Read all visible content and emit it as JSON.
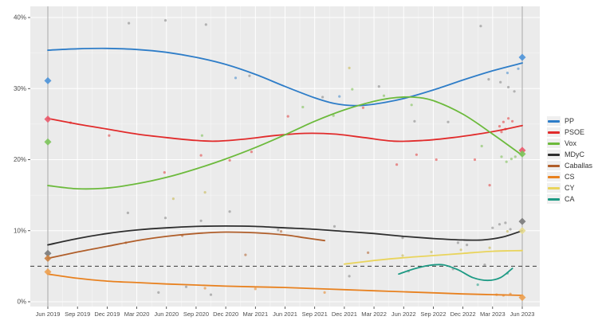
{
  "chart_data": {
    "type": "line",
    "title": "",
    "description_visible_elements": "smoothed polling trend lines with poll scatter dots, two election-result diamond columns, 5% dashed threshold",
    "x_axis": {
      "tick_labels": [
        "Jun 2019",
        "Sep 2019",
        "Dec 2019",
        "Mar 2020",
        "Jun 2020",
        "Sep 2020",
        "Dec 2020",
        "Mar 2021",
        "Jun 2021",
        "Sep 2021",
        "Dec 2021",
        "Mar 2022",
        "Jun 2022",
        "Sep 2022",
        "Dec 2022",
        "Mar 2023",
        "Jun 2023"
      ],
      "tick_months": [
        0,
        3,
        6,
        9,
        12,
        15,
        18,
        21,
        24,
        27,
        30,
        33,
        36,
        39,
        42,
        45,
        48
      ]
    },
    "y_axis": {
      "tick_labels": [
        "0%",
        "10%",
        "20%",
        "30%",
        "40%"
      ],
      "tick_values": [
        0,
        10,
        20,
        30,
        40
      ],
      "minor_values": [
        5,
        15,
        25,
        35
      ],
      "ylim": [
        -0.7,
        41.6
      ]
    },
    "threshold_pct": 5,
    "grid": "on",
    "legend_position": "right",
    "legend": [
      {
        "label": "PP",
        "color": "#2e7dc8"
      },
      {
        "label": "PSOE",
        "color": "#e12b2b"
      },
      {
        "label": "Vox",
        "color": "#6cba3c"
      },
      {
        "label": "MDyC",
        "color": "#2e2e2e"
      },
      {
        "label": "Caballas",
        "color": "#b05e2a"
      },
      {
        "label": "CS",
        "color": "#e8811f"
      },
      {
        "label": "CY",
        "color": "#e9d45c"
      },
      {
        "label": "CA",
        "color": "#1d9a84"
      }
    ],
    "series": [
      {
        "name": "PP",
        "color": "#2e7dc8",
        "points": [
          [
            0,
            35.4
          ],
          [
            3,
            35.6
          ],
          [
            6,
            35.65
          ],
          [
            9,
            35.5
          ],
          [
            12,
            35.1
          ],
          [
            15,
            34.4
          ],
          [
            18,
            33.4
          ],
          [
            21,
            32.0
          ],
          [
            24,
            30.3
          ],
          [
            27,
            28.7
          ],
          [
            29,
            27.9
          ],
          [
            31,
            27.6
          ],
          [
            33,
            27.8
          ],
          [
            36,
            28.6
          ],
          [
            39,
            29.8
          ],
          [
            42,
            31.2
          ],
          [
            45,
            32.5
          ],
          [
            48,
            33.6
          ]
        ]
      },
      {
        "name": "PSOE",
        "color": "#e12b2b",
        "points": [
          [
            0,
            25.8
          ],
          [
            3,
            25.0
          ],
          [
            6,
            24.3
          ],
          [
            9,
            23.6
          ],
          [
            12,
            23.1
          ],
          [
            15,
            22.7
          ],
          [
            17,
            22.6
          ],
          [
            20,
            22.9
          ],
          [
            23,
            23.4
          ],
          [
            26,
            23.7
          ],
          [
            29,
            23.6
          ],
          [
            32,
            23.1
          ],
          [
            35,
            22.6
          ],
          [
            38,
            22.7
          ],
          [
            41,
            23.1
          ],
          [
            44,
            23.7
          ],
          [
            46,
            24.2
          ],
          [
            48,
            24.8
          ]
        ]
      },
      {
        "name": "Vox",
        "color": "#6cba3c",
        "points": [
          [
            0,
            16.35
          ],
          [
            3,
            15.9
          ],
          [
            6,
            16.0
          ],
          [
            9,
            16.6
          ],
          [
            12,
            17.5
          ],
          [
            15,
            18.7
          ],
          [
            18,
            20.1
          ],
          [
            21,
            21.7
          ],
          [
            24,
            23.5
          ],
          [
            27,
            25.4
          ],
          [
            30,
            27.0
          ],
          [
            33,
            28.2
          ],
          [
            35,
            28.7
          ],
          [
            37,
            28.8
          ],
          [
            39,
            28.3
          ],
          [
            42,
            26.4
          ],
          [
            45,
            23.6
          ],
          [
            48,
            20.6
          ]
        ]
      },
      {
        "name": "MDyC",
        "color": "#2e2e2e",
        "points": [
          [
            0,
            8.0
          ],
          [
            3,
            8.9
          ],
          [
            6,
            9.6
          ],
          [
            9,
            10.1
          ],
          [
            12,
            10.4
          ],
          [
            15,
            10.6
          ],
          [
            18,
            10.65
          ],
          [
            21,
            10.6
          ],
          [
            24,
            10.4
          ],
          [
            27,
            10.2
          ],
          [
            30,
            9.9
          ],
          [
            33,
            9.6
          ],
          [
            36,
            9.2
          ],
          [
            39,
            8.9
          ],
          [
            42,
            8.7
          ],
          [
            44,
            8.7
          ],
          [
            46,
            9.1
          ],
          [
            48,
            10.0
          ]
        ]
      },
      {
        "name": "Caballas",
        "color": "#b05e2a",
        "points": [
          [
            0,
            6.1
          ],
          [
            3,
            7.0
          ],
          [
            6,
            7.8
          ],
          [
            9,
            8.6
          ],
          [
            12,
            9.2
          ],
          [
            15,
            9.6
          ],
          [
            18,
            9.8
          ],
          [
            21,
            9.7
          ],
          [
            24,
            9.4
          ],
          [
            26,
            9.0
          ],
          [
            28,
            8.6
          ]
        ]
      },
      {
        "name": "CS",
        "color": "#e8811f",
        "points": [
          [
            0,
            3.9
          ],
          [
            3,
            3.3
          ],
          [
            6,
            2.9
          ],
          [
            9,
            2.7
          ],
          [
            12,
            2.5
          ],
          [
            15,
            2.35
          ],
          [
            18,
            2.2
          ],
          [
            21,
            2.1
          ],
          [
            24,
            2.0
          ],
          [
            27,
            1.85
          ],
          [
            30,
            1.7
          ],
          [
            33,
            1.55
          ],
          [
            36,
            1.4
          ],
          [
            39,
            1.25
          ],
          [
            42,
            1.1
          ],
          [
            45,
            1.0
          ],
          [
            48,
            0.9
          ]
        ]
      },
      {
        "name": "CY",
        "color": "#e9d45c",
        "points": [
          [
            30,
            5.3
          ],
          [
            33,
            5.8
          ],
          [
            36,
            6.2
          ],
          [
            39,
            6.5
          ],
          [
            42,
            6.8
          ],
          [
            45,
            7.1
          ],
          [
            48,
            7.2
          ]
        ]
      },
      {
        "name": "CA",
        "color": "#1d9a84",
        "points": [
          [
            35.5,
            3.9
          ],
          [
            37,
            4.6
          ],
          [
            38.5,
            5.1
          ],
          [
            40,
            5.2
          ],
          [
            41.5,
            4.5
          ],
          [
            43,
            3.4
          ],
          [
            44.5,
            3.0
          ],
          [
            45.8,
            3.4
          ],
          [
            47,
            4.7
          ]
        ]
      }
    ],
    "scatter": [
      {
        "name": "PP-polls",
        "color": "#2e7dc8",
        "opacity": 0.5,
        "points": [
          [
            19.0,
            31.5
          ],
          [
            29.5,
            28.9
          ],
          [
            46.5,
            32.2
          ],
          [
            47.6,
            32.8
          ]
        ]
      },
      {
        "name": "PSOE-polls",
        "color": "#e12b2b",
        "opacity": 0.5,
        "points": [
          [
            2.3,
            25.2
          ],
          [
            6.2,
            23.4
          ],
          [
            11.8,
            18.2
          ],
          [
            15.5,
            20.6
          ],
          [
            18.4,
            19.9
          ],
          [
            20.6,
            21.1
          ],
          [
            24.3,
            26.1
          ],
          [
            31.9,
            27.3
          ],
          [
            35.3,
            19.3
          ],
          [
            37.3,
            20.7
          ],
          [
            39.3,
            20.0
          ],
          [
            43.2,
            20.0
          ],
          [
            44.7,
            16.4
          ],
          [
            45.7,
            24.7
          ],
          [
            45.9,
            23.9
          ],
          [
            46.1,
            25.3
          ],
          [
            46.3,
            24.3
          ],
          [
            46.6,
            25.8
          ],
          [
            47.0,
            25.4
          ]
        ]
      },
      {
        "name": "Vox-polls",
        "color": "#6cba3c",
        "opacity": 0.5,
        "points": [
          [
            15.6,
            23.4
          ],
          [
            25.8,
            27.4
          ],
          [
            28.9,
            26.2
          ],
          [
            30.8,
            29.9
          ],
          [
            34.0,
            29.0
          ],
          [
            36.8,
            27.7
          ],
          [
            43.9,
            21.9
          ],
          [
            45.9,
            20.4
          ],
          [
            46.4,
            19.7
          ],
          [
            46.9,
            20.1
          ],
          [
            47.3,
            20.4
          ]
        ]
      },
      {
        "name": "gray-polls",
        "color": "#8a8a8a",
        "opacity": 0.6,
        "points": [
          [
            8.2,
            39.2
          ],
          [
            11.9,
            39.6
          ],
          [
            16.0,
            39.0
          ],
          [
            20.4,
            31.8
          ],
          [
            27.8,
            28.8
          ],
          [
            33.5,
            30.3
          ],
          [
            43.8,
            38.8
          ],
          [
            44.6,
            31.3
          ],
          [
            45.8,
            30.9
          ],
          [
            46.6,
            30.2
          ],
          [
            47.2,
            29.6
          ],
          [
            37.1,
            25.4
          ],
          [
            40.5,
            25.3
          ],
          [
            8.1,
            12.5
          ],
          [
            11.9,
            11.8
          ],
          [
            15.5,
            11.4
          ],
          [
            18.4,
            12.7
          ],
          [
            23.3,
            10.1
          ],
          [
            29.0,
            10.6
          ],
          [
            35.9,
            9.0
          ],
          [
            41.5,
            8.3
          ],
          [
            42.4,
            8.0
          ],
          [
            45.0,
            10.4
          ],
          [
            45.7,
            10.9
          ],
          [
            46.3,
            11.1
          ],
          [
            46.8,
            10.2
          ],
          [
            30.5,
            3.6
          ],
          [
            36.5,
            4.3
          ],
          [
            41.0,
            4.6
          ],
          [
            44.2,
            5.2
          ],
          [
            14.0,
            2.1
          ],
          [
            16.5,
            1.0
          ],
          [
            11.2,
            1.3
          ]
        ]
      },
      {
        "name": "khaki-polls",
        "color": "#cdc069",
        "opacity": 0.7,
        "points": [
          [
            12.7,
            14.5
          ],
          [
            15.9,
            15.4
          ],
          [
            30.5,
            32.9
          ],
          [
            35.9,
            6.5
          ],
          [
            38.8,
            7.0
          ],
          [
            41.8,
            7.3
          ],
          [
            44.7,
            7.6
          ],
          [
            46.5,
            9.9
          ]
        ]
      },
      {
        "name": "CS-polls",
        "color": "#e8811f",
        "opacity": 0.55,
        "points": [
          [
            15.9,
            1.9
          ],
          [
            21.0,
            1.8
          ],
          [
            28.0,
            1.3
          ],
          [
            45.4,
            1.0
          ],
          [
            46.1,
            0.9
          ],
          [
            46.8,
            1.1
          ]
        ]
      },
      {
        "name": "Caballas-polls",
        "color": "#b05e2a",
        "opacity": 0.55,
        "points": [
          [
            7.9,
            8.3
          ],
          [
            13.6,
            9.3
          ],
          [
            23.6,
            9.9
          ],
          [
            20.0,
            6.6
          ],
          [
            32.4,
            6.9
          ]
        ]
      },
      {
        "name": "CA-polls",
        "color": "#1d9a84",
        "opacity": 0.55,
        "points": [
          [
            43.5,
            2.4
          ],
          [
            46.5,
            4.0
          ]
        ]
      }
    ],
    "elections": [
      {
        "label": "Jun 2019",
        "month": 0,
        "results": [
          {
            "party": "PP",
            "value": 31.1,
            "color": "#4c93d9"
          },
          {
            "party": "PSOE",
            "value": 25.7,
            "color": "#ea5a6b"
          },
          {
            "party": "Vox",
            "value": 22.5,
            "color": "#7cc45a"
          },
          {
            "party": "MDyC",
            "value": 6.8,
            "color": "#7a7a7a"
          },
          {
            "party": "Caballas",
            "value": 6.1,
            "color": "#c9803f"
          },
          {
            "party": "CS",
            "value": 4.2,
            "color": "#eda04f"
          }
        ]
      },
      {
        "label": "Jun 2023",
        "month": 48,
        "results": [
          {
            "party": "PP",
            "value": 34.4,
            "color": "#4c93d9"
          },
          {
            "party": "PSOE",
            "value": 21.3,
            "color": "#ea5a6b"
          },
          {
            "party": "Vox",
            "value": 20.8,
            "color": "#7cc45a"
          },
          {
            "party": "MDyC",
            "value": 11.3,
            "color": "#7a7a7a"
          },
          {
            "party": "CY",
            "value": 10.0,
            "color": "#e6da8e"
          },
          {
            "party": "CS",
            "value": 0.6,
            "color": "#eda04f"
          }
        ]
      }
    ],
    "style": {
      "plot_background": "#ebebeb",
      "grid_major": "#ffffff",
      "grid_minor": "rgba(255,255,255,0.6)",
      "axis_label_color": "#4d4d4d",
      "tick_color": "#333333",
      "election_line_color": "#aeaeae",
      "threshold_color": "#3a3a3a"
    }
  }
}
